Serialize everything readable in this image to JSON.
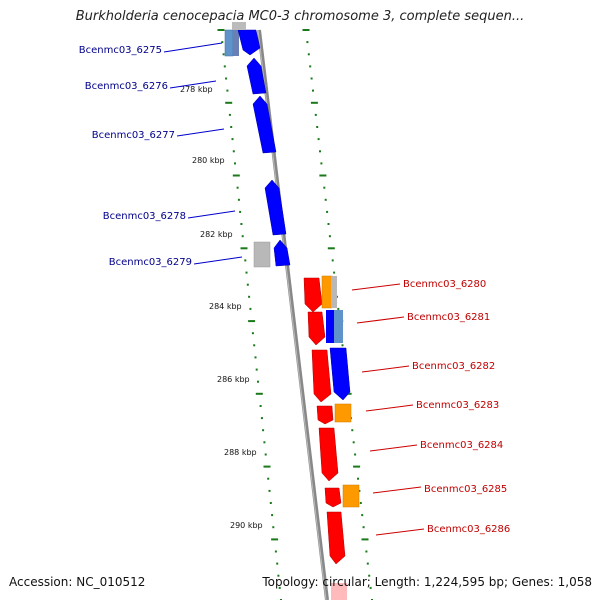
{
  "title": "Burkholderia cenocepacia MC0-3 chromosome 3, complete sequen...",
  "footer": {
    "accession": "Accession: NC_010512",
    "topology": "Topology: circular; Length: 1,224,595 bp; Genes: 1,058"
  },
  "colors": {
    "left_labels": "#00008b",
    "right_labels": "#c00000",
    "tick_marks": "#1a7a1a",
    "backbone": "#888888"
  },
  "ticks": [
    {
      "label": "278 kbp"
    },
    {
      "label": "280 kbp"
    },
    {
      "label": "282 kbp"
    },
    {
      "label": "284 kbp"
    },
    {
      "label": "286 kbp"
    },
    {
      "label": "288 kbp"
    },
    {
      "label": "290 kbp"
    }
  ],
  "genes_left": [
    {
      "label": "Bcenmc03_6275"
    },
    {
      "label": "Bcenmc03_6276"
    },
    {
      "label": "Bcenmc03_6277"
    },
    {
      "label": "Bcenmc03_6278"
    },
    {
      "label": "Bcenmc03_6279"
    }
  ],
  "genes_right": [
    {
      "label": "Bcenmc03_6280"
    },
    {
      "label": "Bcenmc03_6281"
    },
    {
      "label": "Bcenmc03_6282"
    },
    {
      "label": "Bcenmc03_6283"
    },
    {
      "label": "Bcenmc03_6284"
    },
    {
      "label": "Bcenmc03_6285"
    },
    {
      "label": "Bcenmc03_6286"
    }
  ]
}
